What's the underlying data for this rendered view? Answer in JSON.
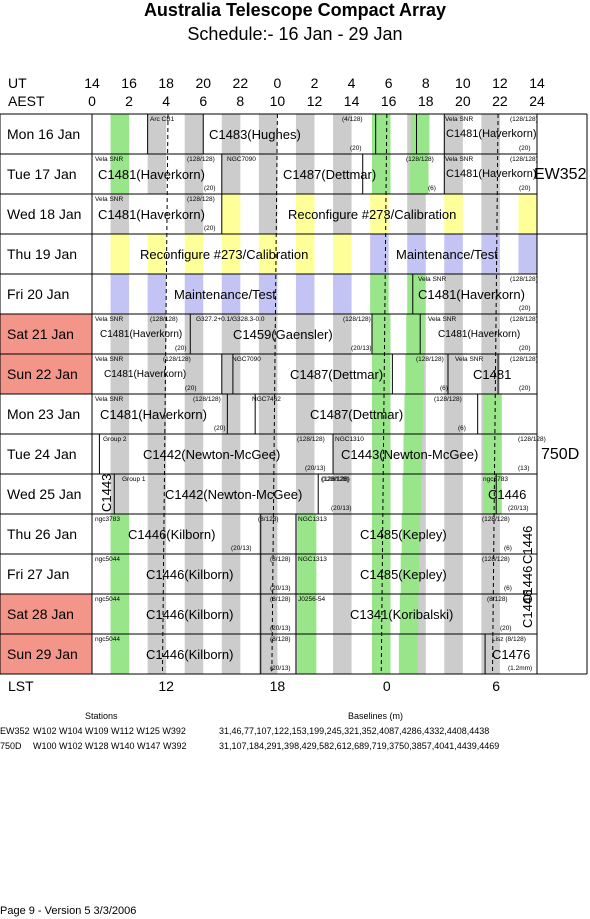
{
  "title": "Australia Telescope Compact Array",
  "subtitle": "Schedule:- 16 Jan - 29 Jan",
  "axis": {
    "ut_label": "UT",
    "aest_label": "AEST",
    "lst_label": "LST",
    "ut_ticks": [
      "14",
      "16",
      "18",
      "20",
      "22",
      "0",
      "2",
      "4",
      "6",
      "8",
      "10",
      "12",
      "14"
    ],
    "aest_ticks": [
      "0",
      "2",
      "4",
      "6",
      "8",
      "10",
      "12",
      "14",
      "16",
      "18",
      "20",
      "22",
      "24"
    ],
    "lst_ticks": [
      "12",
      "18",
      "0",
      "6"
    ]
  },
  "colors": {
    "weekend": "#f4958a",
    "green": "#99e68a",
    "grey": "#cccccc",
    "yellow": "#ffff99",
    "lavender": "#c4c4f4"
  },
  "days": [
    {
      "name": "Mon   16 Jan",
      "weekend": false
    },
    {
      "name": "Tue   17 Jan",
      "weekend": false
    },
    {
      "name": "Wed  18 Jan",
      "weekend": false
    },
    {
      "name": "Thu   19 Jan",
      "weekend": false
    },
    {
      "name": "Fri    20 Jan",
      "weekend": false
    },
    {
      "name": "Sat   21 Jan",
      "weekend": true
    },
    {
      "name": "Sun   22 Jan",
      "weekend": true
    },
    {
      "name": "Mon  23 Jan",
      "weekend": false
    },
    {
      "name": "Tue   24 Jan",
      "weekend": false
    },
    {
      "name": "Wed  25 Jan",
      "weekend": false
    },
    {
      "name": "Thu   26 Jan",
      "weekend": false
    },
    {
      "name": "Fri    27 Jan",
      "weekend": false
    },
    {
      "name": "Sat   28 Jan",
      "weekend": true
    },
    {
      "name": "Sun   29 Jan",
      "weekend": true
    }
  ],
  "configs": [
    "EW352",
    "750D",
    "C1443",
    "C1446",
    "C1446",
    "C1446"
  ],
  "programs": {
    "p0": "C1483(Hughes)",
    "p1": "C1481(Haverkorn)",
    "p2": "C1481(Haverkorn)",
    "p3": "C1487(Dettmar)",
    "p4": "C1481(Haverkorn)",
    "p5": "C1481(Haverkorn)",
    "p6": "Reconfigure #273/Calibration",
    "p7": "Reconfigure #273/Calibration",
    "p8": "Maintenance/Test",
    "p9": "Maintenance/Test",
    "p10": "C1481(Haverkorn)",
    "p11": "C1481(Haverkorn)",
    "p12": "C1459(Gaensler)",
    "p13": "C1481(Haverkorn)",
    "p14": "C1481(Haverkorn)",
    "p15": "C1487(Dettmar)",
    "p16": "C1481",
    "p17": "C1481(Haverkorn)",
    "p18": "C1487(Dettmar)",
    "p19": "C1442(Newton-McGee)",
    "p20": "C1443(Newton-McGee)",
    "p21": "C1442(Newton-McGee)",
    "p22": "C1446",
    "p23": "C1446(Kilborn)",
    "p24": "C1485(Kepley)",
    "p25": "C1446(Kilborn)",
    "p26": "C1485(Kepley)",
    "p27": "C1446(Kilborn)",
    "p28": "C1341(Koribalski)",
    "p29": "C1446(Kilborn)",
    "p30": "C1476"
  },
  "sources": {
    "s0": "Arc CB1",
    "s1": "Vela SNR",
    "s2": "Vela SNR",
    "s3": "NGC7090",
    "s4": "Vela SNR",
    "s5": "Vela SNR",
    "s6": "Vela SNR",
    "s7": "Vela SNR",
    "s8": "G327.2+0.1/G328.3-0.0",
    "s9": "Vela SNR",
    "s10": "Vela SNR",
    "s11": "NGC7090",
    "s12": "Vela SNR",
    "s13": "Vela SNR",
    "s14": "NGC7462",
    "s15": "Group 2",
    "s16": "NGC1310",
    "s17": "Group 1",
    "s18": "ngc3783",
    "s19": "ngc3783",
    "s20": "NGC1313",
    "s21": "ngc5044",
    "s22": "NGC1313",
    "s23": "ngc5044",
    "s24": "J0256-54",
    "s25": "ngc5044",
    "s26": "Lisz (8/128)"
  },
  "notes": {
    "n0": "(4/128)",
    "n1": "(20)",
    "n2": "(128/128)",
    "n3": "(20)",
    "n4": "(128/128)",
    "n5": "(20)",
    "n6": "(128/128)",
    "n7": "(20)",
    "n8": "(128/128)",
    "n9": "(6)",
    "n10": "(128/128)",
    "n11": "(20)",
    "n12": "(128/128)",
    "n13": "(20)",
    "n14": "(128/128)",
    "n15": "(20)",
    "n16": "(128/128)",
    "n17": "(20)",
    "n18": "(128/128)",
    "n19": "(20/13)",
    "n20": "(128/128)",
    "n21": "(20)",
    "n22": "(128/128)",
    "n23": "(20)",
    "n24": "(128/128)",
    "n25": "(6)",
    "n26": "(128/128)",
    "n27": "(20)",
    "n28": "(128/128)",
    "n29": "(20)",
    "n30": "(128/128)",
    "n31": "(6)",
    "n32": "(128/128)",
    "n33": "(20/13)",
    "n34": "(128/128)",
    "n35": "(13)",
    "n36": "(128/128)",
    "n37": "(20/13)",
    "n38": "(20/13)",
    "n39": "(8/128)",
    "n40": "(20/13)",
    "n41": "(128/128)",
    "n42": "(6)",
    "n43": "(8/128)",
    "n44": "(20/13)",
    "n45": "(128/128)",
    "n46": "(6)",
    "n47": "(8/128)",
    "n48": "(20/13)",
    "n49": "(8/128)",
    "n50": "(20)",
    "n51": "(8/128)",
    "n52": "(20/13)",
    "n53": "(1.2mm)"
  },
  "footer": {
    "stations_label": "Stations",
    "baselines_label": "Baselines (m)",
    "row1_cfg": "EW352",
    "row1_stations": "W102 W104 W109 W112 W125 W392",
    "row1_baselines": "31,46,77,107,122,153,199,245,321,352,4087,4286,4332,4408,4438",
    "row2_cfg": "750D",
    "row2_stations": "W100 W102 W128 W140 W147 W392",
    "row2_baselines": "31,107,184,291,398,429,582,612,689,719,3750,3857,4041,4439,4469",
    "page_info": "Page 9 - Version 5  3/3/2006"
  }
}
